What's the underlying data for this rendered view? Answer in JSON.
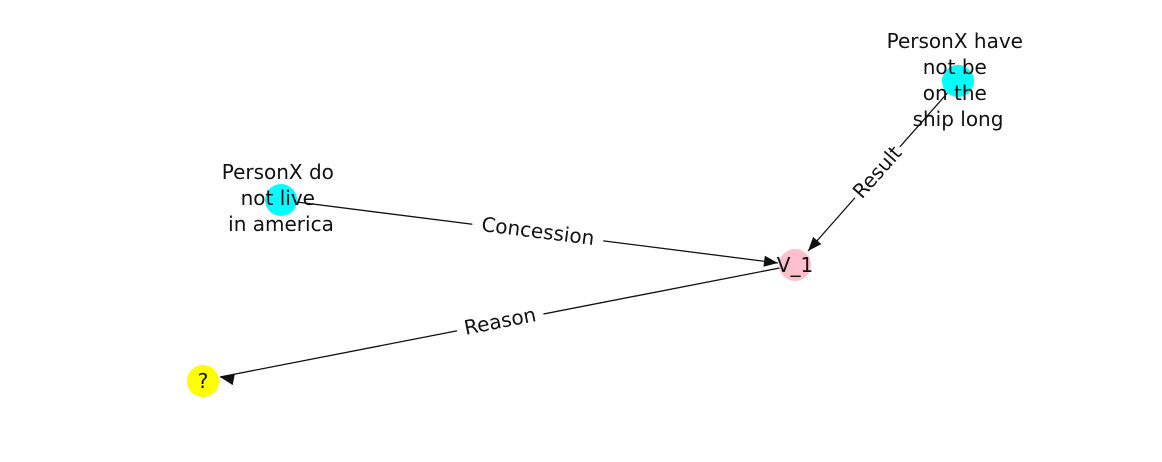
{
  "graph": {
    "nodes": {
      "n1": {
        "label": [
          "PersonX have",
          "not be",
          "on the",
          "ship long"
        ],
        "color": "#00ffff"
      },
      "n2": {
        "label": [
          "PersonX do",
          "not live",
          "in america"
        ],
        "color": "#00ffff"
      },
      "v1": {
        "label": [
          "V_1"
        ],
        "color": "#ffc0cb"
      },
      "q": {
        "label": [
          "?"
        ],
        "color": "#ffff00"
      }
    },
    "edges": {
      "e1": {
        "from": "n2",
        "to": "v1",
        "label": "Concession"
      },
      "e2": {
        "from": "n1",
        "to": "v1",
        "label": "Result"
      },
      "e3": {
        "from": "v1",
        "to": "q",
        "label": "Reason"
      }
    }
  }
}
